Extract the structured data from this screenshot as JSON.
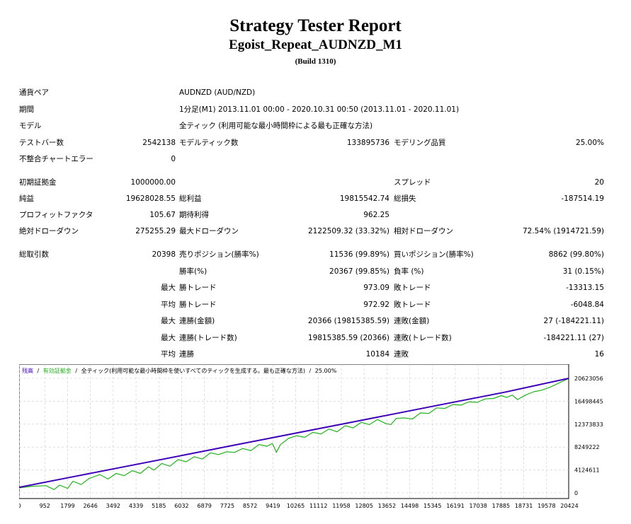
{
  "header": {
    "title": "Strategy Tester Report",
    "subtitle": "Egoist_Repeat_AUDNZD_M1",
    "build": "(Build 1310)"
  },
  "info": {
    "symbol_label": "通貨ペア",
    "symbol_value": "AUDNZD (AUD/NZD)",
    "period_label": "期間",
    "period_value": "1分足(M1) 2013.11.01 00:00 - 2020.10.31 00:50 (2013.11.01 - 2020.11.01)",
    "model_label": "モデル",
    "model_value": "全ティック (利用可能な最小時間枠による最も正確な方法)",
    "bars_label": "テストバー数",
    "bars_value": "2542138",
    "ticks_label": "モデルティック数",
    "ticks_value": "133895736",
    "quality_label": "モデリング品質",
    "quality_value": "25.00%",
    "errors_label": "不整合チャートエラー",
    "errors_value": "0"
  },
  "stats": {
    "deposit_label": "初期証拠金",
    "deposit_value": "1000000.00",
    "spread_label": "スプレッド",
    "spread_value": "20",
    "net_label": "純益",
    "net_value": "19628028.55",
    "gross_profit_label": "総利益",
    "gross_profit_value": "19815542.74",
    "gross_loss_label": "総損失",
    "gross_loss_value": "-187514.19",
    "pf_label": "プロフィットファクタ",
    "pf_value": "105.67",
    "expected_label": "期待利得",
    "expected_value": "962.25",
    "abs_dd_label": "絶対ドローダウン",
    "abs_dd_value": "275255.29",
    "max_dd_label": "最大ドローダウン",
    "max_dd_value": "2122509.32 (33.32%)",
    "rel_dd_label": "相対ドローダウン",
    "rel_dd_value": "72.54% (1914721.59)",
    "total_trades_label": "総取引数",
    "total_trades_value": "20398",
    "short_label": "売りポジション(勝率%)",
    "short_value": "11536 (99.89%)",
    "long_label": "買いポジション(勝率%)",
    "long_value": "8862 (99.80%)",
    "win_rate_label": "勝率(%)",
    "win_rate_value": "20367 (99.85%)",
    "loss_rate_label": "負率 (%)",
    "loss_rate_value": "31 (0.15%)",
    "max_label": "最大",
    "avg_label": "平均",
    "largest_win_label": "勝トレード",
    "largest_win_value": "973.09",
    "largest_loss_label": "敗トレード",
    "largest_loss_value": "-13313.15",
    "avg_win_label": "勝トレード",
    "avg_win_value": "972.92",
    "avg_loss_label": "敗トレード",
    "avg_loss_value": "-6048.84",
    "max_consec_wins_label": "連勝(金額)",
    "max_consec_wins_value": "20366 (19815385.59)",
    "max_consec_losses_label": "連敗(金額)",
    "max_consec_losses_value": "27 (-184221.11)",
    "max_consec_profit_label": "連勝(トレード数)",
    "max_consec_profit_value": "19815385.59 (20366)",
    "max_consec_loss_label": "連敗(トレード数)",
    "max_consec_loss_value": "-184221.11 (27)",
    "avg_consec_wins_label": "連勝",
    "avg_consec_wins_value": "10184",
    "avg_consec_losses_label": "連敗",
    "avg_consec_losses_value": "16"
  },
  "chart_data": {
    "type": "line",
    "legend_balance": "残高",
    "legend_equity": "有効証拠金",
    "legend_rest": "全ティック(利用可能な最小時間枠を使いすべてのティックを生成する。最も正確な方法)",
    "legend_quality": "25.00%",
    "legend_sep": "/",
    "x_ticks": [
      0,
      952,
      1799,
      2646,
      3492,
      4339,
      5185,
      6032,
      6879,
      7725,
      8572,
      9419,
      10265,
      11112,
      11958,
      12805,
      13652,
      14498,
      15345,
      16191,
      17038,
      17885,
      18731,
      19578,
      20424
    ],
    "y_ticks": [
      0,
      4124611,
      8249222,
      12373833,
      16498445,
      20623056
    ],
    "xlim": [
      0,
      20398
    ],
    "ylim": [
      0,
      20623056
    ],
    "grid": true,
    "series": [
      {
        "name": "残高",
        "color": "#3e00b8",
        "x": [
          0,
          2000,
          4000,
          6000,
          8000,
          10000,
          12000,
          14000,
          16000,
          18000,
          20398
        ],
        "y": [
          1000000,
          2900000,
          4800000,
          6700000,
          8600000,
          10500000,
          12400000,
          14300000,
          16200000,
          18100000,
          20628000
        ]
      },
      {
        "name": "有効証拠金",
        "color": "#22b21c",
        "x": [
          0,
          500,
          1000,
          1300,
          1500,
          1800,
          2000,
          2300,
          2600,
          3000,
          3300,
          3600,
          3900,
          4200,
          4500,
          4800,
          5000,
          5300,
          5600,
          5900,
          6200,
          6500,
          6800,
          7100,
          7400,
          7700,
          8000,
          8300,
          8600,
          8900,
          9200,
          9400,
          9550,
          9700,
          10000,
          10300,
          10600,
          10900,
          11200,
          11500,
          11800,
          12100,
          12400,
          12700,
          13000,
          13300,
          13600,
          13800,
          14000,
          14300,
          14600,
          14900,
          15200,
          15500,
          15800,
          16100,
          16400,
          16700,
          17000,
          17300,
          17600,
          17900,
          18100,
          18300,
          18500,
          18800,
          19100,
          19400,
          19700,
          20000,
          20398
        ],
        "y": [
          900000,
          1200000,
          1300000,
          600000,
          1400000,
          800000,
          2100000,
          1500000,
          2600000,
          3300000,
          2500000,
          3500000,
          3100000,
          4000000,
          3500000,
          4700000,
          4100000,
          5300000,
          4800000,
          6000000,
          5600000,
          6500000,
          6100000,
          7200000,
          6900000,
          7400000,
          7300000,
          8000000,
          7600000,
          8700000,
          8400000,
          8900000,
          7300000,
          8700000,
          9800000,
          10300000,
          10000000,
          10900000,
          10600000,
          11500000,
          11000000,
          12100000,
          11700000,
          12700000,
          12300000,
          13200000,
          12500000,
          12300000,
          13400000,
          13500000,
          13300000,
          14400000,
          14300000,
          15300000,
          15200000,
          15900000,
          15800000,
          16400000,
          16300000,
          16900000,
          17000000,
          17500000,
          17200000,
          17600000,
          16800000,
          17600000,
          18200000,
          18500000,
          19000000,
          19700000,
          20600000
        ]
      }
    ]
  }
}
